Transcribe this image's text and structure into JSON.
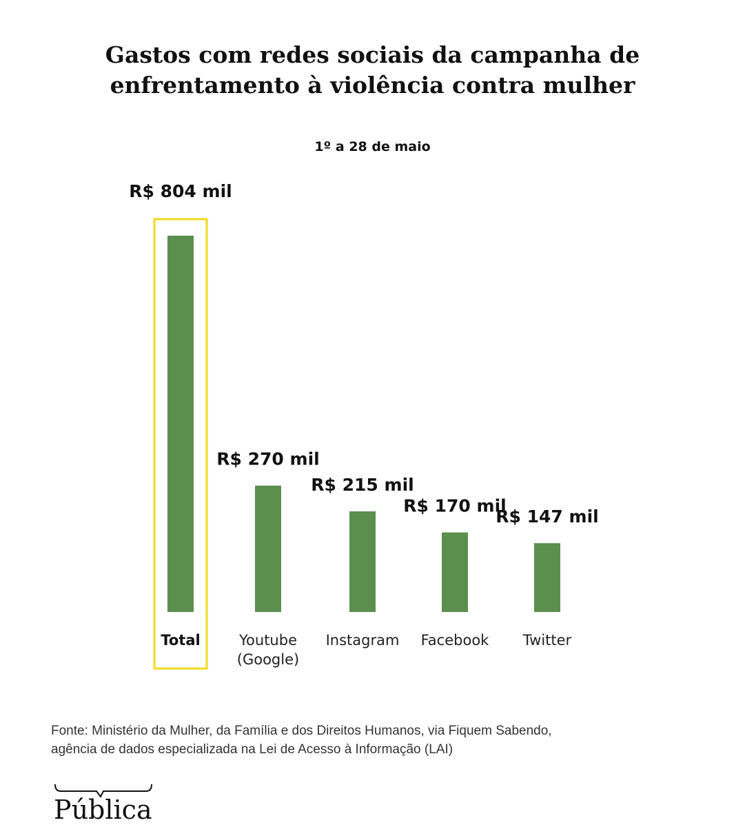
{
  "title_lines": [
    "Gastos com redes sociais da campanha de",
    "enfrentamento à violência contra mulher"
  ],
  "subtitle": "1º a 28 de maio",
  "colors": {
    "bar": "#5a8f4d",
    "highlight": "#f1d91c",
    "text": "#111111"
  },
  "chart_data": {
    "type": "bar",
    "title": "Gastos com redes sociais da campanha de enfrentamento à violência contra mulher",
    "subtitle": "1º a 28 de maio",
    "categories": [
      [
        "Total"
      ],
      [
        "Youtube",
        "(Google)"
      ],
      [
        "Instagram"
      ],
      [
        "Facebook"
      ],
      [
        "Twitter"
      ]
    ],
    "values": [
      804,
      270,
      215,
      170,
      147
    ],
    "value_labels": [
      "R$ 804 mil",
      "R$ 270 mil",
      "R$ 215 mil",
      "R$ 170 mil",
      "R$ 147 mil"
    ],
    "unit": "R$ mil",
    "highlighted_category": "Total",
    "xlabel": "",
    "ylabel": "",
    "ylim": [
      0,
      804
    ],
    "grid": false
  },
  "source_lines": [
    "Fonte: Ministério da Mulher, da Família e dos Direitos Humanos, via Fiquem Sabendo,",
    "agência de dados especializada na Lei de Acesso à Informação (LAI)"
  ],
  "brand": "Pública"
}
